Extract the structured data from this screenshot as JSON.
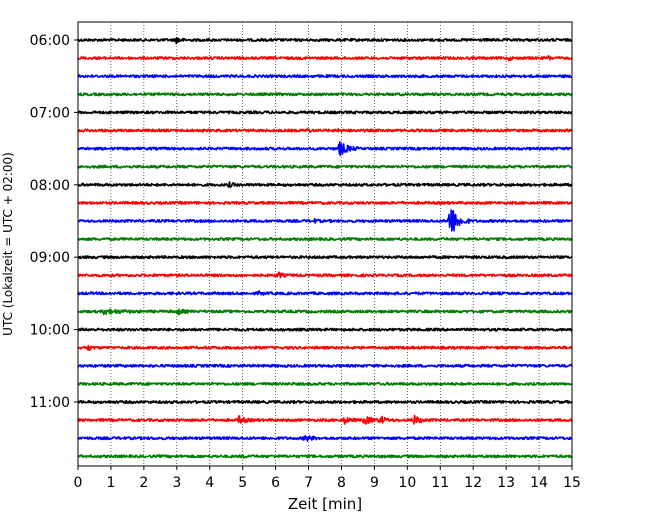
{
  "chart_data": {
    "type": "line",
    "title": "",
    "xlabel": "Zeit  [min]",
    "ylabel": "UTC (Lokalzeit = UTC + 02:00)",
    "xlim": [
      0,
      15
    ],
    "x_ticks": [
      0,
      1,
      2,
      3,
      4,
      5,
      6,
      7,
      8,
      9,
      10,
      11,
      12,
      13,
      14,
      15
    ],
    "x_tick_labels": [
      "0",
      "1",
      "2",
      "3",
      "4",
      "5",
      "6",
      "7",
      "8",
      "9",
      "10",
      "11",
      "12",
      "13",
      "14",
      "15"
    ],
    "y_tick_labels": [
      "06:00",
      "07:00",
      "08:00",
      "09:00",
      "10:00",
      "11:00"
    ],
    "vertical_grid": "dotted",
    "colors": [
      "#000000",
      "#ff0000",
      "#0000ff",
      "#008000"
    ],
    "traces": [
      {
        "start": "06:00",
        "color": "#000000",
        "events": [
          {
            "t": 3.0,
            "amp": 0.35,
            "dur": 0.3
          }
        ]
      },
      {
        "start": "06:15",
        "color": "#ff0000",
        "events": [
          {
            "t": 13.1,
            "amp": 0.2,
            "dur": 0.15
          },
          {
            "t": 14.3,
            "amp": 0.2,
            "dur": 0.15
          }
        ]
      },
      {
        "start": "06:30",
        "color": "#0000ff",
        "events": []
      },
      {
        "start": "06:45",
        "color": "#008000",
        "events": []
      },
      {
        "start": "07:00",
        "color": "#000000",
        "events": []
      },
      {
        "start": "07:15",
        "color": "#ff0000",
        "events": [
          {
            "t": 7.0,
            "amp": 0.2,
            "dur": 0.15
          },
          {
            "t": 7.9,
            "amp": 0.2,
            "dur": 0.15
          }
        ]
      },
      {
        "start": "07:30",
        "color": "#0000ff",
        "events": [
          {
            "t": 7.95,
            "amp": 0.75,
            "dur": 0.6
          }
        ]
      },
      {
        "start": "07:45",
        "color": "#008000",
        "events": []
      },
      {
        "start": "08:00",
        "color": "#000000",
        "events": [
          {
            "t": 4.6,
            "amp": 0.2,
            "dur": 0.3
          }
        ]
      },
      {
        "start": "08:15",
        "color": "#ff0000",
        "events": []
      },
      {
        "start": "08:30",
        "color": "#0000ff",
        "events": [
          {
            "t": 11.3,
            "amp": 1.9,
            "dur": 0.6
          },
          {
            "t": 7.2,
            "amp": 0.15,
            "dur": 0.2
          }
        ]
      },
      {
        "start": "08:45",
        "color": "#008000",
        "events": []
      },
      {
        "start": "09:00",
        "color": "#000000",
        "events": []
      },
      {
        "start": "09:15",
        "color": "#ff0000",
        "events": [
          {
            "t": 6.1,
            "amp": 0.25,
            "dur": 0.3
          }
        ]
      },
      {
        "start": "09:30",
        "color": "#0000ff",
        "events": [
          {
            "t": 5.5,
            "amp": 0.15,
            "dur": 0.3
          }
        ]
      },
      {
        "start": "09:45",
        "color": "#008000",
        "events": [
          {
            "t": 0.8,
            "amp": 0.25,
            "dur": 1.2
          },
          {
            "t": 3.0,
            "amp": 0.35,
            "dur": 0.4
          }
        ]
      },
      {
        "start": "10:00",
        "color": "#000000",
        "events": []
      },
      {
        "start": "10:15",
        "color": "#ff0000",
        "events": [
          {
            "t": 0.3,
            "amp": 0.25,
            "dur": 0.3
          }
        ]
      },
      {
        "start": "10:30",
        "color": "#0000ff",
        "events": []
      },
      {
        "start": "10:45",
        "color": "#008000",
        "events": []
      },
      {
        "start": "11:00",
        "color": "#000000",
        "events": []
      },
      {
        "start": "11:15",
        "color": "#ff0000",
        "events": [
          {
            "t": 4.9,
            "amp": 0.4,
            "dur": 0.4
          },
          {
            "t": 8.1,
            "amp": 0.3,
            "dur": 0.4
          },
          {
            "t": 8.7,
            "amp": 0.4,
            "dur": 0.6
          },
          {
            "t": 9.2,
            "amp": 0.35,
            "dur": 0.4
          },
          {
            "t": 10.2,
            "amp": 0.45,
            "dur": 0.5
          }
        ]
      },
      {
        "start": "11:30",
        "color": "#0000ff",
        "events": [
          {
            "t": 6.9,
            "amp": 0.3,
            "dur": 0.5
          }
        ]
      },
      {
        "start": "11:45",
        "color": "#008000",
        "events": [
          {
            "t": 5.0,
            "amp": 0.15,
            "dur": 0.2
          }
        ]
      }
    ]
  }
}
